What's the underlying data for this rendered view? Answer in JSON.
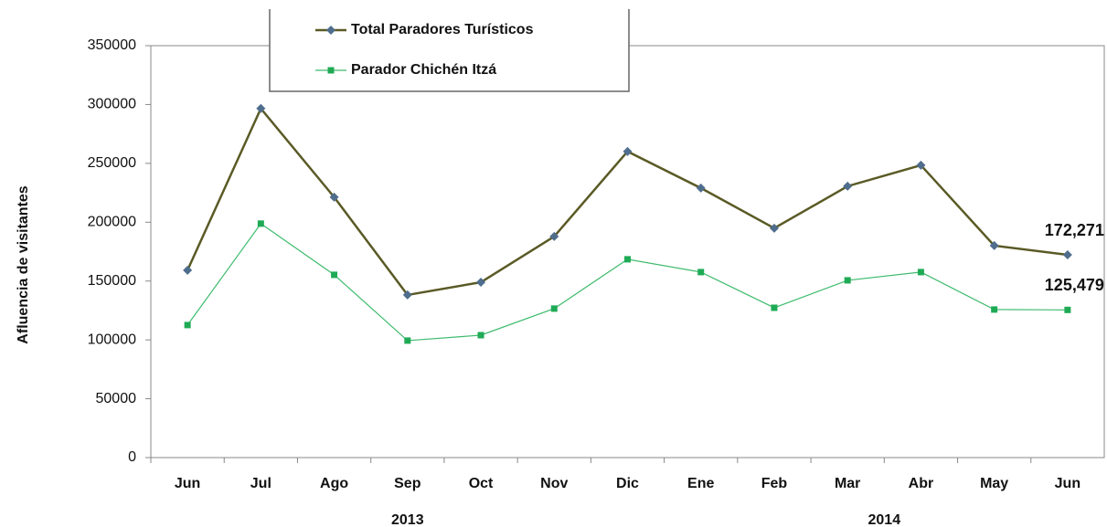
{
  "chart_data": {
    "type": "line",
    "y_axis_label": "Afluencia de visitantes",
    "categories": [
      "Jun",
      "Jul",
      "Ago",
      "Sep",
      "Oct",
      "Nov",
      "Dic",
      "Ene",
      "Feb",
      "Mar",
      "Abr",
      "May",
      "Jun"
    ],
    "x_groups": [
      {
        "label": "2013",
        "count": 7
      },
      {
        "label": "2014",
        "count": 6
      }
    ],
    "series": [
      {
        "name": "Total Paradores Turísticos",
        "color": "#5a5a26",
        "marker": "diamond",
        "marker_color": "#4f6d8c",
        "values": [
          159200,
          296600,
          221300,
          138200,
          149000,
          187900,
          260100,
          229000,
          194900,
          230600,
          248400,
          180100,
          172271
        ],
        "value_labels": [
          null,
          null,
          null,
          null,
          null,
          null,
          null,
          null,
          null,
          null,
          null,
          null,
          "172,271"
        ]
      },
      {
        "name": "Parador Chichén Itzá",
        "color": "#3dbb6c",
        "marker": "square",
        "marker_color": "#1faa55",
        "values": [
          112600,
          198800,
          155300,
          99400,
          104000,
          126600,
          168500,
          157600,
          127300,
          150600,
          157600,
          125800,
          125479
        ],
        "value_labels": [
          null,
          null,
          null,
          null,
          null,
          null,
          null,
          null,
          null,
          null,
          null,
          null,
          "125,479"
        ]
      }
    ],
    "ylim": [
      0,
      350000
    ],
    "yticks": [
      0,
      50000,
      100000,
      150000,
      200000,
      250000,
      300000,
      350000
    ],
    "grid": false
  }
}
